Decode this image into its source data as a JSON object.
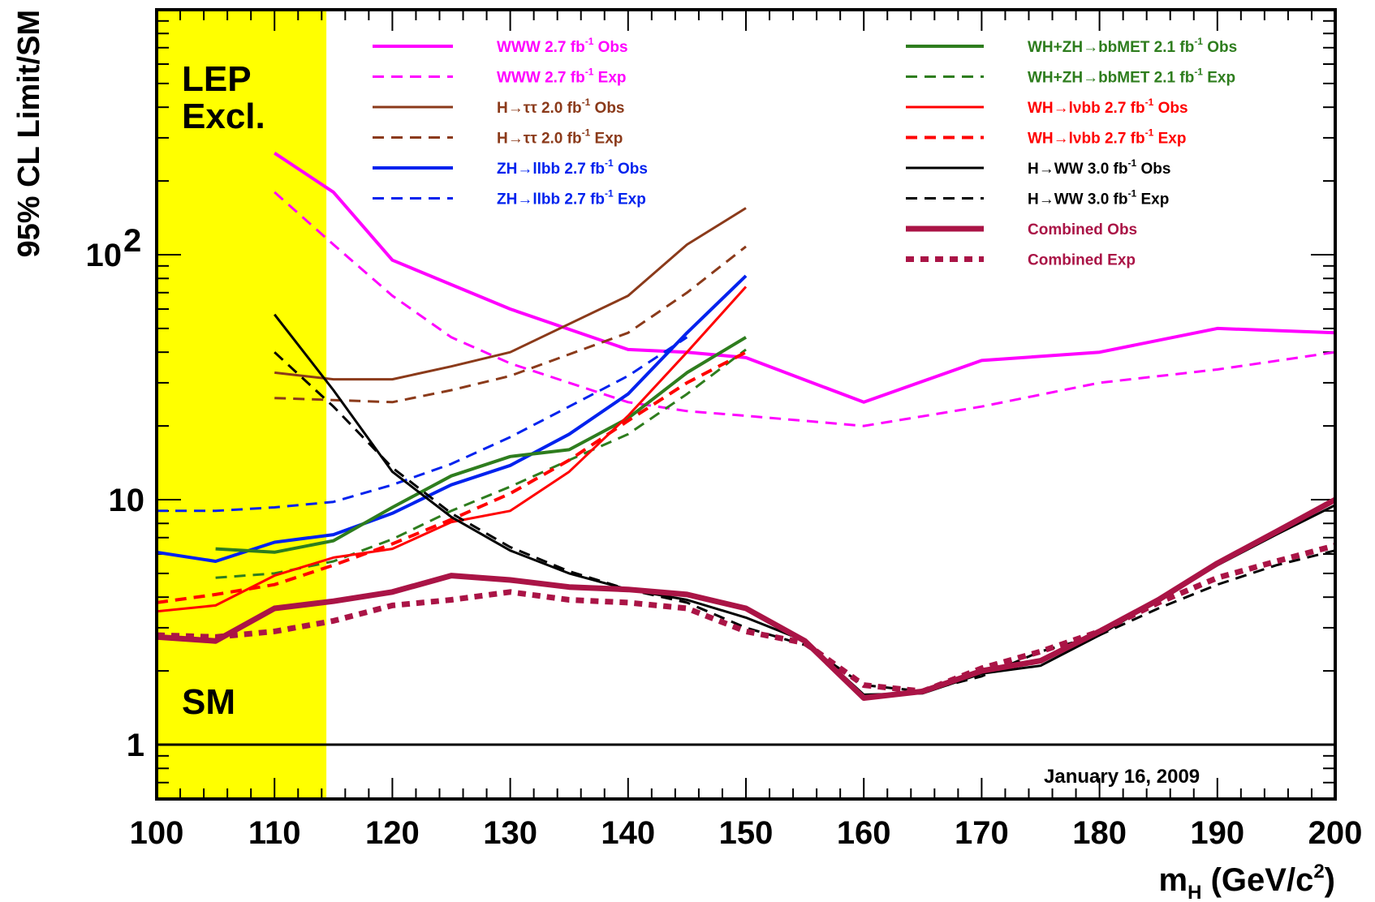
{
  "chart_data": {
    "type": "line",
    "x_label": "m",
    "x_label_sub": "H",
    "x_label_units_pre": "(GeV/c",
    "x_label_units_sup": "2",
    "x_label_units_post": ")",
    "y_label": "95% CL Limit/SM",
    "y_scale": "log",
    "xlim": [
      100,
      200
    ],
    "ylim": [
      0.6,
      1000
    ],
    "x_ticks": [
      100,
      110,
      120,
      130,
      140,
      150,
      160,
      170,
      180,
      190,
      200
    ],
    "y_ticks": [
      {
        "value": 1,
        "base": "1"
      },
      {
        "value": 10,
        "base": "10"
      },
      {
        "value": 100,
        "base": "10",
        "sup": "2"
      }
    ],
    "sm_line": 1,
    "lep_exclusion": {
      "x_from": 100,
      "x_to": 114.4,
      "color": "#ffff00",
      "label_line1": "LEP",
      "label_line2": "Excl."
    },
    "sm_label": "SM",
    "date_label": "January 16, 2009",
    "series": [
      {
        "name": "WWW 2.7 fb",
        "sup": "-1",
        "suffix": " Obs",
        "color": "#ff00ff",
        "dash": "solid",
        "width": 4,
        "x": [
          110,
          115,
          120,
          130,
          140,
          145,
          150,
          160,
          170,
          180,
          190,
          200
        ],
        "y": [
          260,
          180,
          95,
          60,
          41,
          40,
          38,
          25,
          37,
          40,
          50,
          48
        ]
      },
      {
        "name": "WWW 2.7 fb",
        "sup": "-1",
        "suffix": " Exp",
        "color": "#ff00ff",
        "dash": "dashed",
        "width": 3,
        "x": [
          110,
          115,
          120,
          125,
          130,
          140,
          145,
          150,
          160,
          170,
          180,
          190,
          200
        ],
        "y": [
          180,
          110,
          68,
          46,
          36,
          25,
          23,
          22,
          20,
          24,
          30,
          34,
          40
        ]
      },
      {
        "name": "H→ττ 2.0 fb",
        "sup": "-1",
        "suffix": " Obs",
        "color": "#8b3a1a",
        "dash": "solid",
        "width": 3,
        "x": [
          110,
          115,
          120,
          125,
          130,
          140,
          145,
          150
        ],
        "y": [
          33,
          31,
          31,
          35,
          40,
          68,
          110,
          155
        ]
      },
      {
        "name": "H→ττ 2.0 fb",
        "sup": "-1",
        "suffix": " Exp",
        "color": "#8b3a1a",
        "dash": "dashed",
        "width": 3,
        "x": [
          110,
          115,
          120,
          125,
          130,
          140,
          145,
          150
        ],
        "y": [
          26,
          25.5,
          25,
          28,
          32,
          48,
          70,
          108
        ]
      },
      {
        "name": "ZH→llbb 2.7 fb",
        "sup": "-1",
        "suffix": " Obs",
        "color": "#0022ee",
        "dash": "solid",
        "width": 4,
        "x": [
          100,
          105,
          110,
          115,
          120,
          125,
          130,
          135,
          140,
          145,
          150
        ],
        "y": [
          6.1,
          5.6,
          6.7,
          7.2,
          8.8,
          11.5,
          13.8,
          18.5,
          27,
          48,
          82
        ]
      },
      {
        "name": "ZH→llbb 2.7 fb",
        "sup": "-1",
        "suffix": " Exp",
        "color": "#0022ee",
        "dash": "dashed",
        "width": 3,
        "x": [
          100,
          105,
          110,
          115,
          120,
          125,
          130,
          135,
          140,
          145
        ],
        "y": [
          9.0,
          9.0,
          9.3,
          9.8,
          11.5,
          14,
          18,
          24,
          32,
          46
        ]
      },
      {
        "name": "WH+ZH→bbMET 2.1 fb",
        "sup": "-1",
        "suffix": " Obs",
        "color": "#2e7d1e",
        "dash": "solid",
        "width": 4,
        "x": [
          105,
          110,
          115,
          120,
          125,
          130,
          135,
          140,
          145,
          150
        ],
        "y": [
          6.3,
          6.1,
          6.8,
          9.3,
          12.5,
          15,
          16,
          21.5,
          33,
          46
        ]
      },
      {
        "name": "WH+ZH→bbMET 2.1 fb",
        "sup": "-1",
        "suffix": " Exp",
        "color": "#2e7d1e",
        "dash": "dashed",
        "width": 3,
        "x": [
          105,
          110,
          115,
          120,
          125,
          130,
          135,
          140,
          145,
          150
        ],
        "y": [
          4.8,
          5.0,
          5.6,
          6.9,
          9.0,
          11.3,
          14.5,
          18.5,
          27,
          41
        ]
      },
      {
        "name": "WH→lνbb 2.7 fb",
        "sup": "-1",
        "suffix": " Obs",
        "color": "#ff0000",
        "dash": "solid",
        "width": 3,
        "x": [
          100,
          105,
          110,
          115,
          120,
          125,
          130,
          135,
          140,
          145,
          150
        ],
        "y": [
          3.5,
          3.7,
          4.9,
          5.8,
          6.3,
          8.1,
          9.0,
          13.0,
          22,
          40,
          74
        ]
      },
      {
        "name": "WH→lνbb 2.7 fb",
        "sup": "-1",
        "suffix": " Exp",
        "color": "#ff0000",
        "dash": "dashed",
        "width": 4,
        "x": [
          100,
          105,
          110,
          115,
          120,
          125,
          130,
          135,
          140,
          145,
          150
        ],
        "y": [
          3.8,
          4.1,
          4.5,
          5.4,
          6.6,
          8.3,
          10.6,
          14.5,
          21,
          30,
          40
        ]
      },
      {
        "name": "H→WW 3.0 fb",
        "sup": "-1",
        "suffix": " Obs",
        "color": "#000000",
        "dash": "solid",
        "width": 3,
        "x": [
          110,
          115,
          120,
          125,
          130,
          135,
          140,
          145,
          150,
          155,
          160,
          165,
          170,
          175,
          180,
          185,
          190,
          195,
          200
        ],
        "y": [
          57,
          28,
          13,
          8.5,
          6.2,
          5.0,
          4.3,
          3.9,
          3.3,
          2.65,
          1.6,
          1.62,
          1.95,
          2.1,
          2.8,
          3.9,
          5.4,
          7.2,
          9.5
        ]
      },
      {
        "name": "H→WW 3.0 fb",
        "sup": "-1",
        "suffix": " Exp",
        "color": "#000000",
        "dash": "dashed",
        "width": 3,
        "x": [
          110,
          115,
          120,
          125,
          130,
          135,
          140,
          145,
          150,
          155,
          160,
          165,
          170,
          175,
          180,
          185,
          190,
          195,
          200
        ],
        "y": [
          40,
          24,
          13.5,
          8.8,
          6.4,
          5.1,
          4.3,
          3.8,
          3.0,
          2.55,
          1.75,
          1.65,
          1.9,
          2.4,
          2.8,
          3.6,
          4.5,
          5.4,
          6.2
        ]
      },
      {
        "name": "Combined Obs",
        "sup": "",
        "suffix": "",
        "color": "#aa1446",
        "dash": "solid",
        "width": 7,
        "x": [
          100,
          105,
          110,
          115,
          120,
          125,
          130,
          135,
          140,
          145,
          150,
          155,
          160,
          165,
          170,
          175,
          180,
          185,
          190,
          195,
          200
        ],
        "y": [
          2.75,
          2.65,
          3.6,
          3.85,
          4.2,
          4.9,
          4.7,
          4.4,
          4.3,
          4.1,
          3.6,
          2.65,
          1.55,
          1.65,
          2.0,
          2.2,
          2.9,
          3.9,
          5.5,
          7.4,
          10.0
        ]
      },
      {
        "name": "Combined Exp",
        "sup": "",
        "suffix": "",
        "color": "#aa1446",
        "dash": "dotted",
        "width": 7,
        "x": [
          100,
          105,
          110,
          115,
          120,
          125,
          130,
          135,
          140,
          145,
          150,
          155,
          160,
          165,
          170,
          175,
          180,
          185,
          190,
          195,
          200
        ],
        "y": [
          2.8,
          2.75,
          2.9,
          3.2,
          3.7,
          3.9,
          4.2,
          3.9,
          3.8,
          3.6,
          2.9,
          2.6,
          1.75,
          1.65,
          2.05,
          2.4,
          2.9,
          3.8,
          4.8,
          5.6,
          6.5
        ]
      }
    ]
  }
}
